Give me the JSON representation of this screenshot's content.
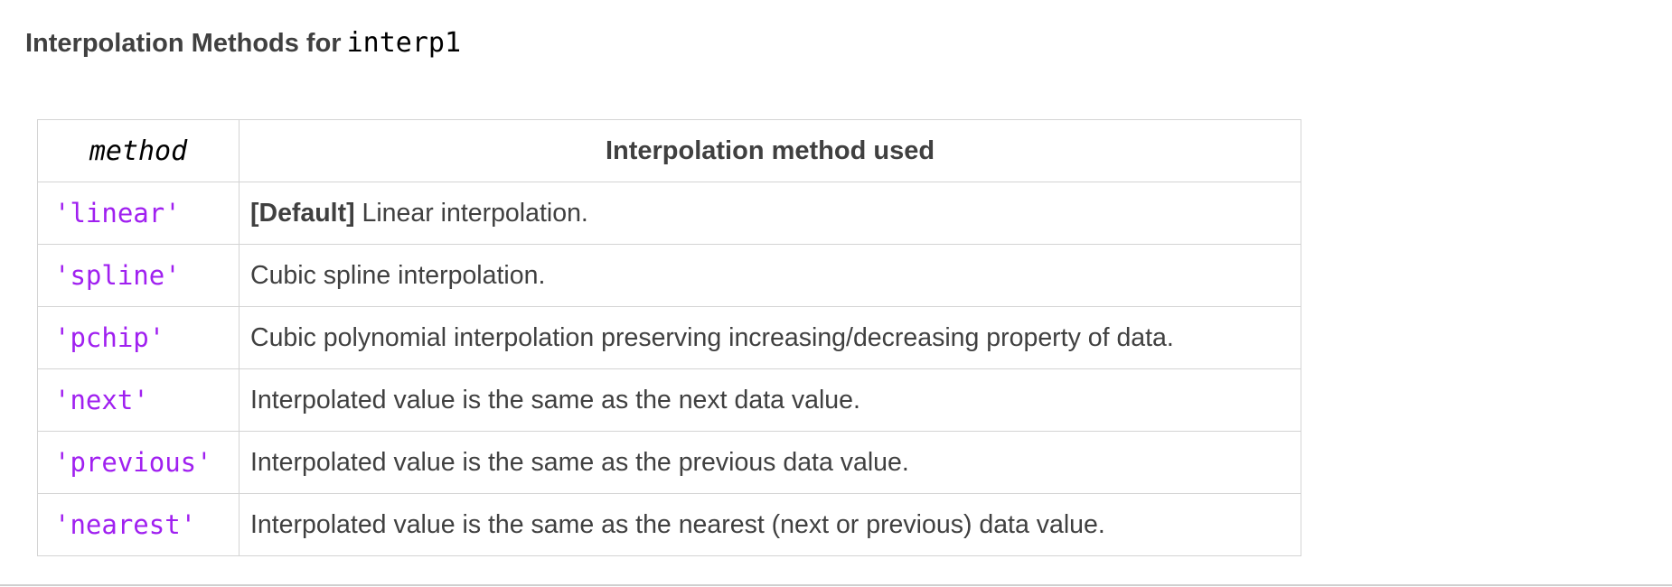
{
  "heading": {
    "text": "Interpolation Methods for",
    "code": "interp1"
  },
  "table": {
    "headers": {
      "method": "method",
      "description": "Interpolation method used"
    },
    "rows": [
      {
        "method": "'linear'",
        "prefix_bold": "[Default]",
        "description": " Linear interpolation."
      },
      {
        "method": "'spline'",
        "prefix_bold": "",
        "description": "Cubic spline interpolation."
      },
      {
        "method": "'pchip'",
        "prefix_bold": "",
        "description": "Cubic polynomial interpolation preserving increasing/decreasing property of data."
      },
      {
        "method": "'next'",
        "prefix_bold": "",
        "description": "Interpolated value is the same as the next data value."
      },
      {
        "method": "'previous'",
        "prefix_bold": "",
        "description": "Interpolated value is the same as the previous data value."
      },
      {
        "method": "'nearest'",
        "prefix_bold": "",
        "description": "Interpolated value is the same as the nearest (next or previous) data value."
      }
    ]
  },
  "colors": {
    "method_value": "#a020f0",
    "text": "#404040",
    "border": "#d4d4d4"
  }
}
